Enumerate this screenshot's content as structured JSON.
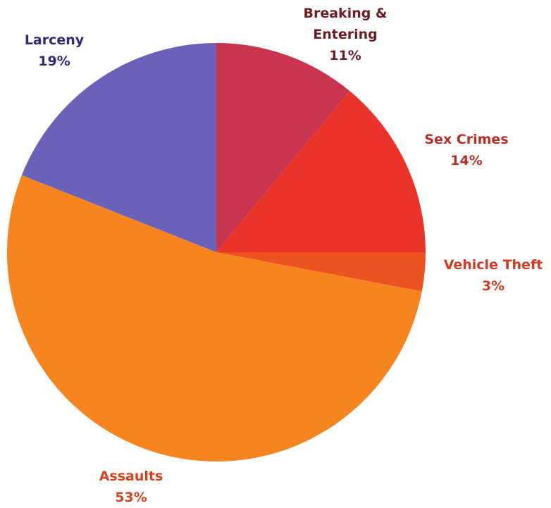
{
  "chart_data": {
    "type": "pie",
    "categories": [
      "Breaking & Entering",
      "Sex Crimes",
      "Vehicle Theft",
      "Assaults",
      "Larceny"
    ],
    "values": [
      11,
      14,
      3,
      53,
      19
    ],
    "value_labels": [
      "11%",
      "14%",
      "3%",
      "53%",
      "19%"
    ],
    "colors": [
      "#c9344e",
      "#ea3429",
      "#ec5320",
      "#f7851f",
      "#6a62b8"
    ],
    "label_colors": [
      "#6e1b24",
      "#b9302b",
      "#d23b22",
      "#d2441e",
      "#2f2b7c"
    ]
  }
}
